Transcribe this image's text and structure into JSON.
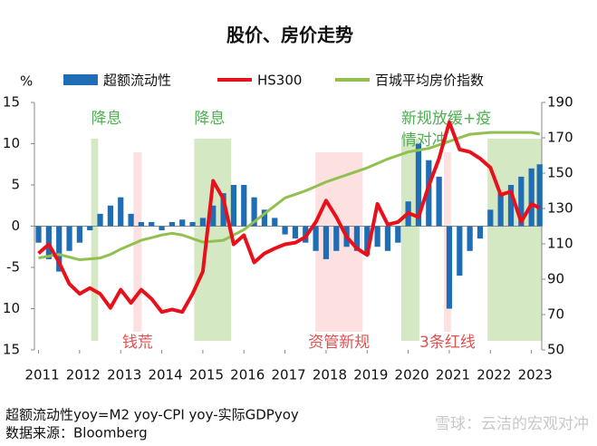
{
  "chart_data": {
    "type": "combo",
    "title": "股价、房价走势",
    "y_unit": "%",
    "xlim": [
      2010.9,
      2023.25
    ],
    "xticks": [
      2011,
      2012,
      2013,
      2014,
      2015,
      2016,
      2017,
      2018,
      2019,
      2020,
      2021,
      2022,
      2023
    ],
    "ylim": [
      -15,
      15
    ],
    "yticks": [
      {
        "value": -15,
        "label": "15"
      },
      {
        "value": -10,
        "label": "10"
      },
      -5,
      0,
      5,
      10,
      15
    ],
    "y2lim": [
      50,
      190
    ],
    "y2ticks": [
      50,
      70,
      90,
      110,
      130,
      150,
      170,
      190
    ],
    "bands": [
      {
        "label": [
          "降息"
        ],
        "start": 2012.28,
        "end": 2012.45,
        "color": "#d5e8c4"
      },
      {
        "label": [
          "钱荒"
        ],
        "start": 2013.31,
        "end": 2013.51,
        "color": "#fde0e0"
      },
      {
        "label": [
          "降息"
        ],
        "start": 2014.79,
        "end": 2015.69,
        "color": "#d5e8c4"
      },
      {
        "label": [
          "资管新规"
        ],
        "start": 2017.74,
        "end": 2018.89,
        "color": "#fde0e0"
      },
      {
        "label": [
          "新规放缓+疫",
          "情对冲"
        ],
        "start": 2019.83,
        "end": 2020.27,
        "color": "#d5e8c4"
      },
      {
        "label": [
          "3条红线"
        ],
        "start": 2020.87,
        "end": 2021.04,
        "color": "#fde0e0"
      },
      {
        "label": [],
        "start": 2021.93,
        "end": 2023.25,
        "color": "#d5e8c4"
      }
    ],
    "x": [
      2011.0,
      2011.25,
      2011.5,
      2011.75,
      2012.0,
      2012.25,
      2012.5,
      2012.75,
      2013.0,
      2013.25,
      2013.5,
      2013.75,
      2014.0,
      2014.25,
      2014.5,
      2014.75,
      2015.0,
      2015.25,
      2015.5,
      2015.75,
      2016.0,
      2016.25,
      2016.5,
      2016.75,
      2017.0,
      2017.25,
      2017.5,
      2017.75,
      2018.0,
      2018.25,
      2018.5,
      2018.75,
      2019.0,
      2019.25,
      2019.5,
      2019.75,
      2020.0,
      2020.25,
      2020.5,
      2020.75,
      2021.0,
      2021.25,
      2021.5,
      2021.75,
      2022.0,
      2022.25,
      2022.5,
      2022.75,
      2023.0,
      2023.2
    ],
    "series": [
      {
        "name": "超额流动性",
        "type": "bar",
        "color": "#1f6eb5",
        "values": [
          -2,
          -4,
          -5.5,
          -3,
          -2,
          -0.5,
          1.5,
          2.5,
          3.5,
          1.5,
          0.5,
          0.5,
          -0.5,
          0.5,
          0.8,
          0.5,
          1,
          2.5,
          4,
          5,
          5,
          3.5,
          2,
          1,
          -1,
          -1.5,
          -2,
          -3,
          -4,
          -3,
          -2.5,
          -3,
          -3.5,
          -2.5,
          -3,
          -2,
          3,
          10,
          8,
          6,
          -10,
          -6,
          -3,
          -1.5,
          2,
          4,
          5,
          6,
          7,
          7.5
        ]
      },
      {
        "name": "HS300",
        "type": "line",
        "color": "#e8101a",
        "values": [
          -3.3,
          -2.2,
          -4.4,
          -7,
          -8.2,
          -7.5,
          -8.2,
          -9.9,
          -7.7,
          -9.3,
          -7.7,
          -8.8,
          -10.4,
          -10.1,
          -10.4,
          -8.2,
          -5.5,
          5.5,
          3.3,
          -2.2,
          -1.1,
          -4.4,
          -3.3,
          -2.7,
          -2.2,
          -2,
          -1.3,
          0.5,
          3.1,
          1.1,
          -1.3,
          -2.7,
          -3.5,
          2.7,
          0.2,
          0.5,
          1.6,
          1.1,
          4.9,
          8.2,
          12.6,
          9.3,
          9,
          8.2,
          7.1,
          3.8,
          4.2,
          0.5,
          2.7,
          2.2
        ]
      },
      {
        "name": "百城平均房价指数",
        "type": "line",
        "axis": "y2",
        "color": "#92c050",
        "values": [
          102,
          103,
          104,
          102.5,
          101,
          101.5,
          102,
          104,
          107,
          109.5,
          112,
          113.5,
          115,
          116,
          115,
          113,
          111,
          111.5,
          112,
          115,
          118,
          122.5,
          127,
          131.5,
          136,
          138,
          140,
          142.5,
          145,
          147,
          149,
          151,
          153,
          155.5,
          158,
          160,
          162,
          163,
          164,
          166,
          168,
          170,
          172,
          172.5,
          173,
          173,
          173,
          173,
          173,
          172
        ]
      }
    ],
    "note": "超额流动性yoy=M2 yoy-CPI yoy-实际GDPyoy",
    "source": "数据来源：Bloomberg",
    "watermark": "雪球：云洁的宏观对冲"
  }
}
